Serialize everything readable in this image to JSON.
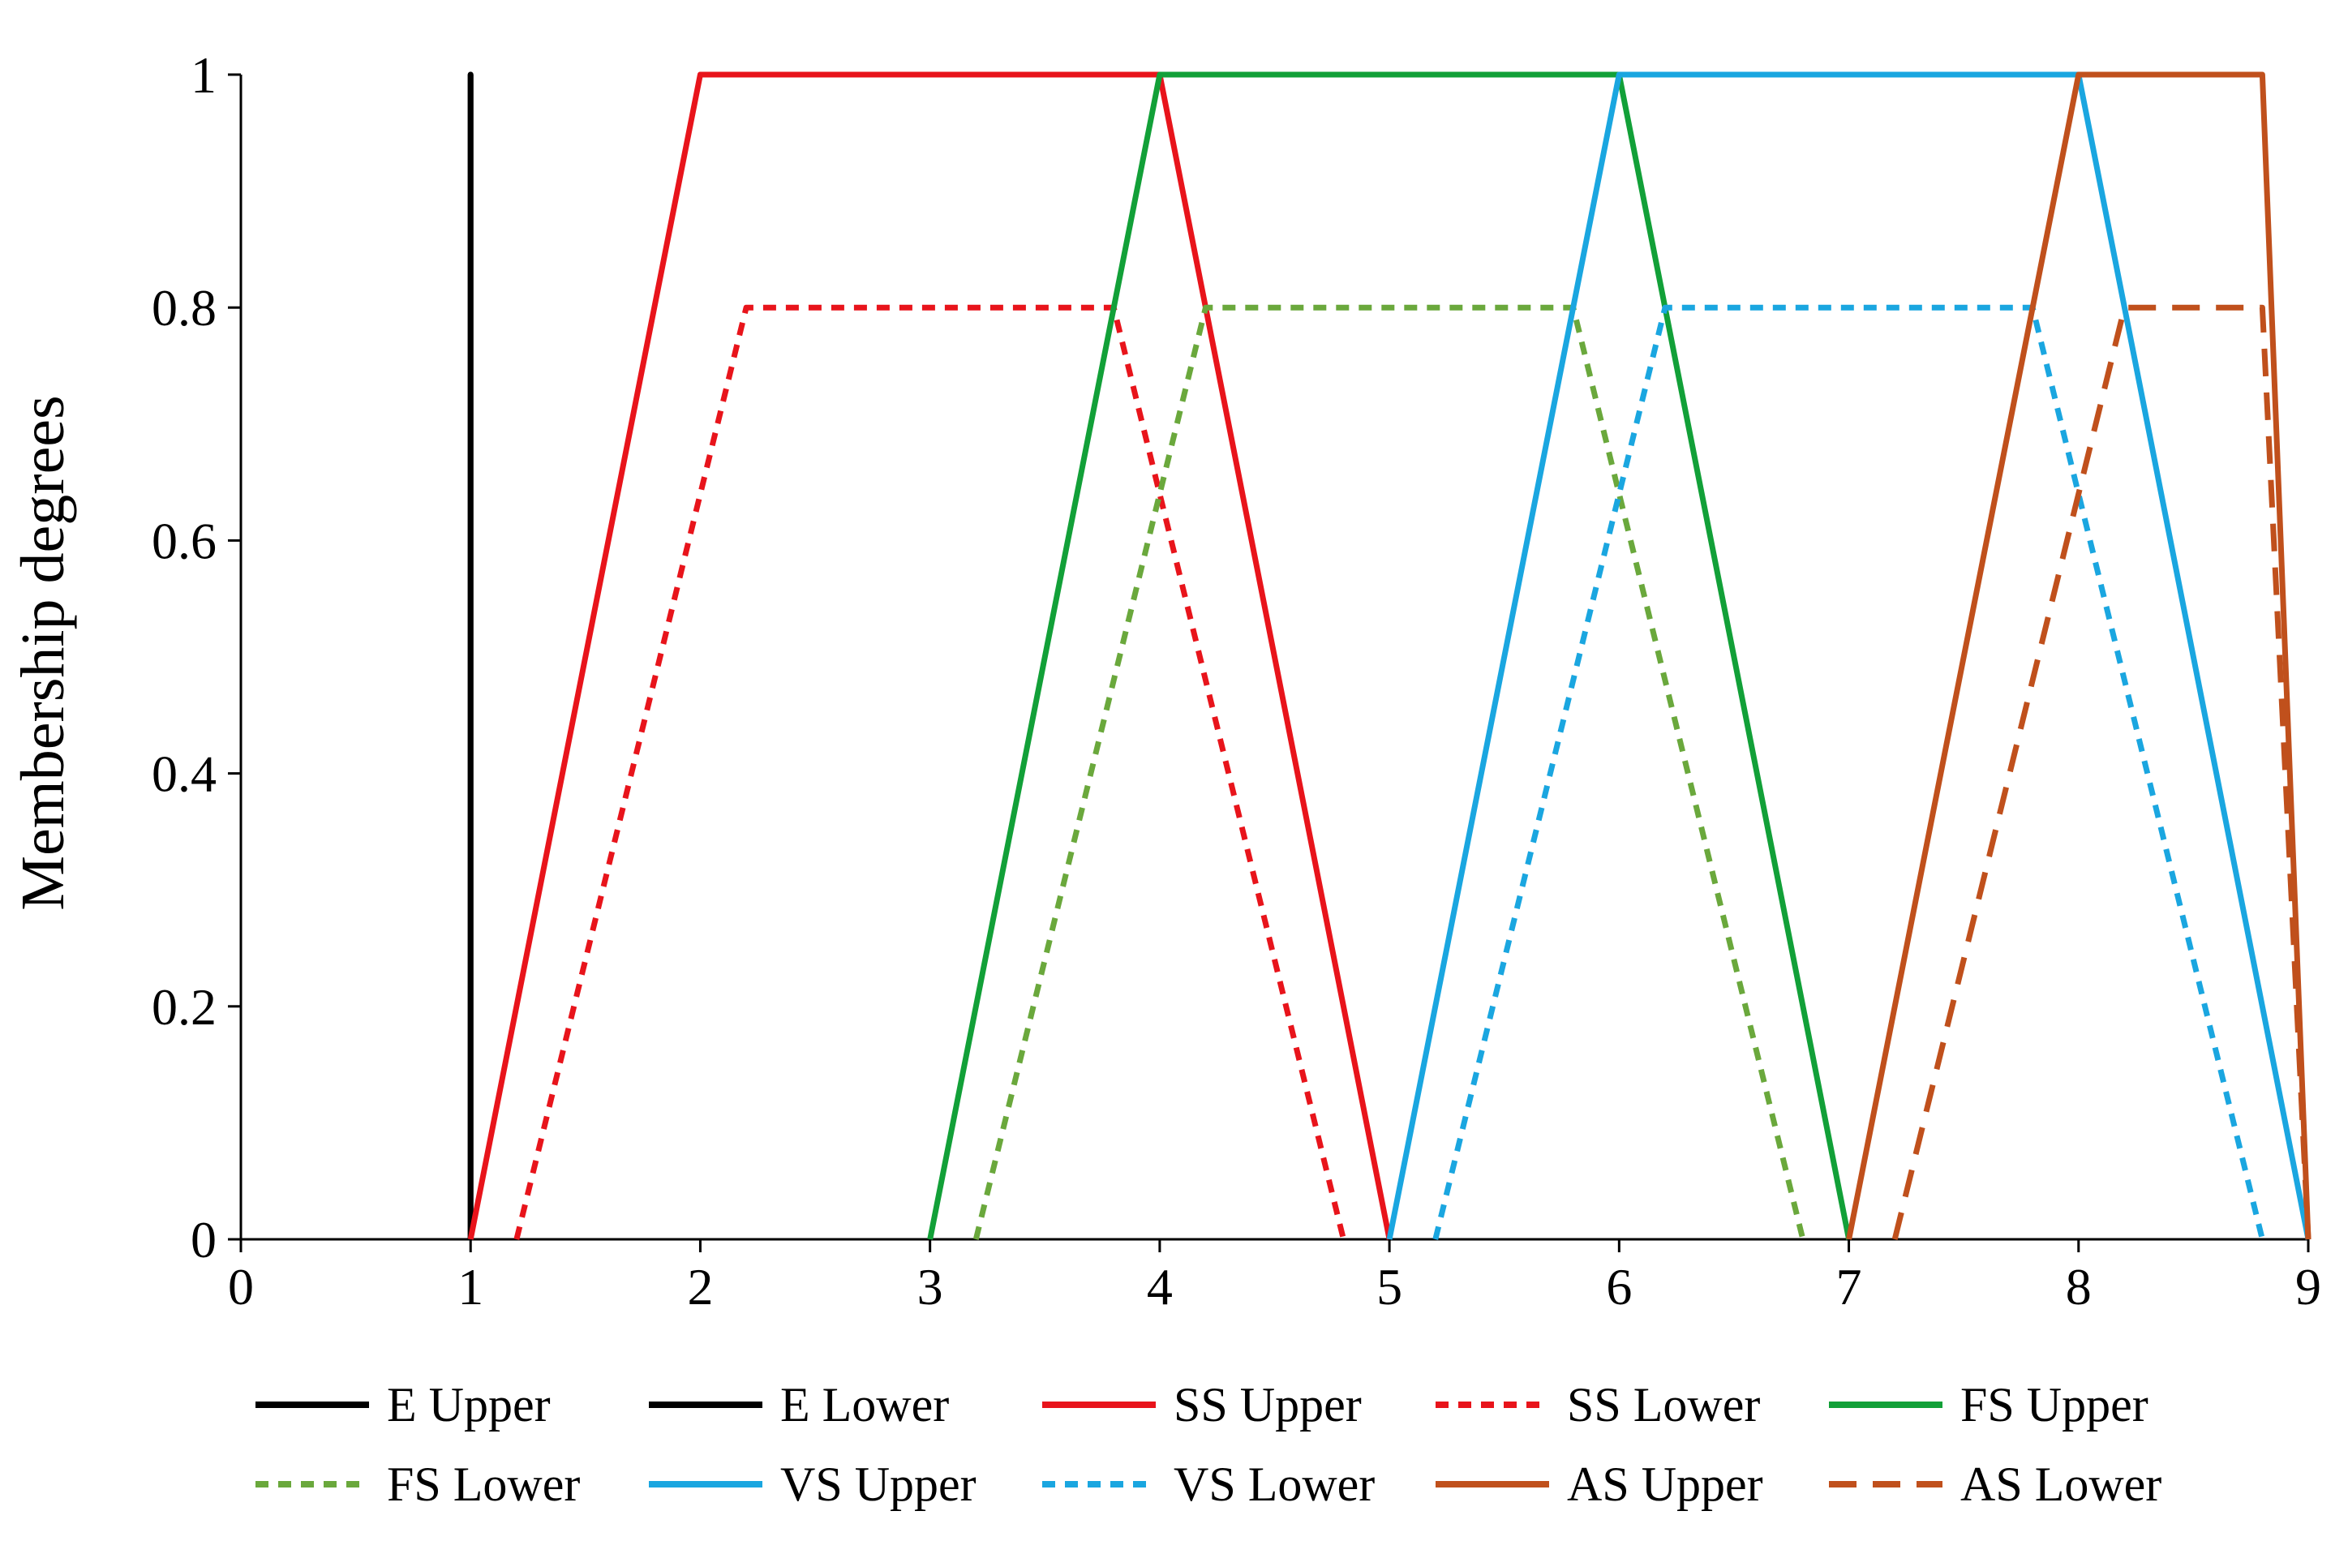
{
  "chart_data": {
    "type": "line",
    "title": "",
    "xlabel": "",
    "ylabel": "Membership degrees",
    "xlim": [
      0,
      9
    ],
    "ylim": [
      0,
      1
    ],
    "x_ticks": [
      "0",
      "1",
      "2",
      "3",
      "4",
      "5",
      "6",
      "7",
      "8",
      "9"
    ],
    "y_ticks": [
      "0",
      "0.2",
      "0.4",
      "0.6",
      "0.8",
      "1"
    ],
    "grid": false,
    "legend_position": "bottom",
    "series": [
      {
        "name": "E Upper",
        "color": "#000000",
        "dash": "solid",
        "x": [
          1,
          1,
          1,
          1
        ],
        "y": [
          0,
          1,
          1,
          0
        ]
      },
      {
        "name": "E Lower",
        "color": "#000000",
        "dash": "solid",
        "x": [
          1,
          1,
          1,
          1
        ],
        "y": [
          0,
          1,
          1,
          0
        ]
      },
      {
        "name": "SS Upper",
        "color": "#e8141b",
        "dash": "solid",
        "x": [
          1,
          2,
          4,
          5
        ],
        "y": [
          0,
          1,
          1,
          0
        ]
      },
      {
        "name": "SS Lower",
        "color": "#e8141b",
        "dash": "dashed",
        "x": [
          1.2,
          2.2,
          3.8,
          4.8
        ],
        "y": [
          0,
          0.8,
          0.8,
          0
        ]
      },
      {
        "name": "FS Upper",
        "color": "#12a038",
        "dash": "solid",
        "x": [
          3,
          4,
          6,
          7
        ],
        "y": [
          0,
          1,
          1,
          0
        ]
      },
      {
        "name": "FS Lower",
        "color": "#6aa83c",
        "dash": "dashed",
        "x": [
          3.2,
          4.2,
          5.8,
          6.8
        ],
        "y": [
          0,
          0.8,
          0.8,
          0
        ]
      },
      {
        "name": "VS Upper",
        "color": "#1aa6e0",
        "dash": "solid",
        "x": [
          5,
          6,
          8,
          9
        ],
        "y": [
          0,
          1,
          1,
          0
        ]
      },
      {
        "name": "VS Lower",
        "color": "#1aa6e0",
        "dash": "dashed",
        "x": [
          5.2,
          6.2,
          7.8,
          8.8
        ],
        "y": [
          0,
          0.8,
          0.8,
          0
        ]
      },
      {
        "name": "AS Upper",
        "color": "#c0501c",
        "dash": "solid",
        "x": [
          7,
          8,
          8.8,
          9
        ],
        "y": [
          0,
          1,
          1,
          0
        ]
      },
      {
        "name": "AS Lower",
        "color": "#c0501c",
        "dash": "longdash",
        "x": [
          7.2,
          8.2,
          8.8,
          9
        ],
        "y": [
          0,
          0.8,
          0.8,
          0
        ]
      }
    ]
  }
}
